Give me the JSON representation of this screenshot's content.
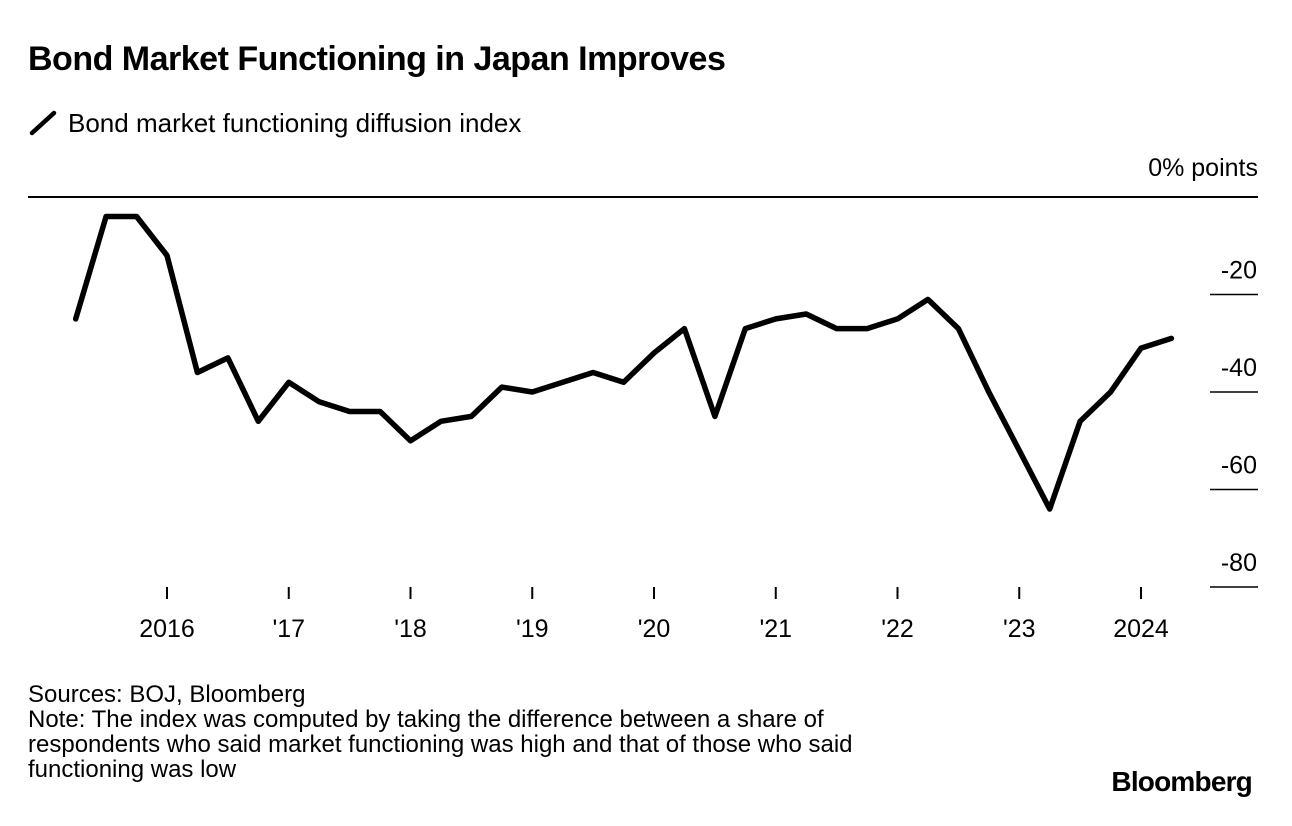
{
  "chart_data": {
    "type": "line",
    "title": "Bond Market Functioning in Japan Improves",
    "legend": "Bond market functioning diffusion index",
    "unit_label": "0% points",
    "ylim": [
      -82,
      0
    ],
    "yticks": [
      -20,
      -40,
      -60,
      -80
    ],
    "ytick_labels": [
      "-20",
      "-40",
      "-60",
      "-80"
    ],
    "x_start": 2015.25,
    "x_step": 0.25,
    "xticks": [
      2016,
      2017,
      2018,
      2019,
      2020,
      2021,
      2022,
      2023,
      2024
    ],
    "xtick_labels": [
      "2016",
      "'17",
      "'18",
      "'19",
      "'20",
      "'21",
      "'22",
      "'23",
      "2024"
    ],
    "series": [
      {
        "name": "Bond market functioning diffusion index",
        "values": [
          -25,
          -4,
          -4,
          -12,
          -36,
          -33,
          -46,
          -38,
          -42,
          -44,
          -44,
          -50,
          -46,
          -45,
          -39,
          -40,
          -38,
          -36,
          -38,
          -32,
          -27,
          -45,
          -27,
          -25,
          -24,
          -27,
          -27,
          -25,
          -21,
          -27,
          -40,
          -52,
          -64,
          -46,
          -40,
          -31,
          -29
        ]
      }
    ],
    "source": "Sources: BOJ, Bloomberg",
    "note_lines": [
      "Note: The index was computed by taking the difference between a share of",
      "respondents who said market functioning was high and that of those who said",
      "functioning was low"
    ],
    "brand": "Bloomberg"
  }
}
